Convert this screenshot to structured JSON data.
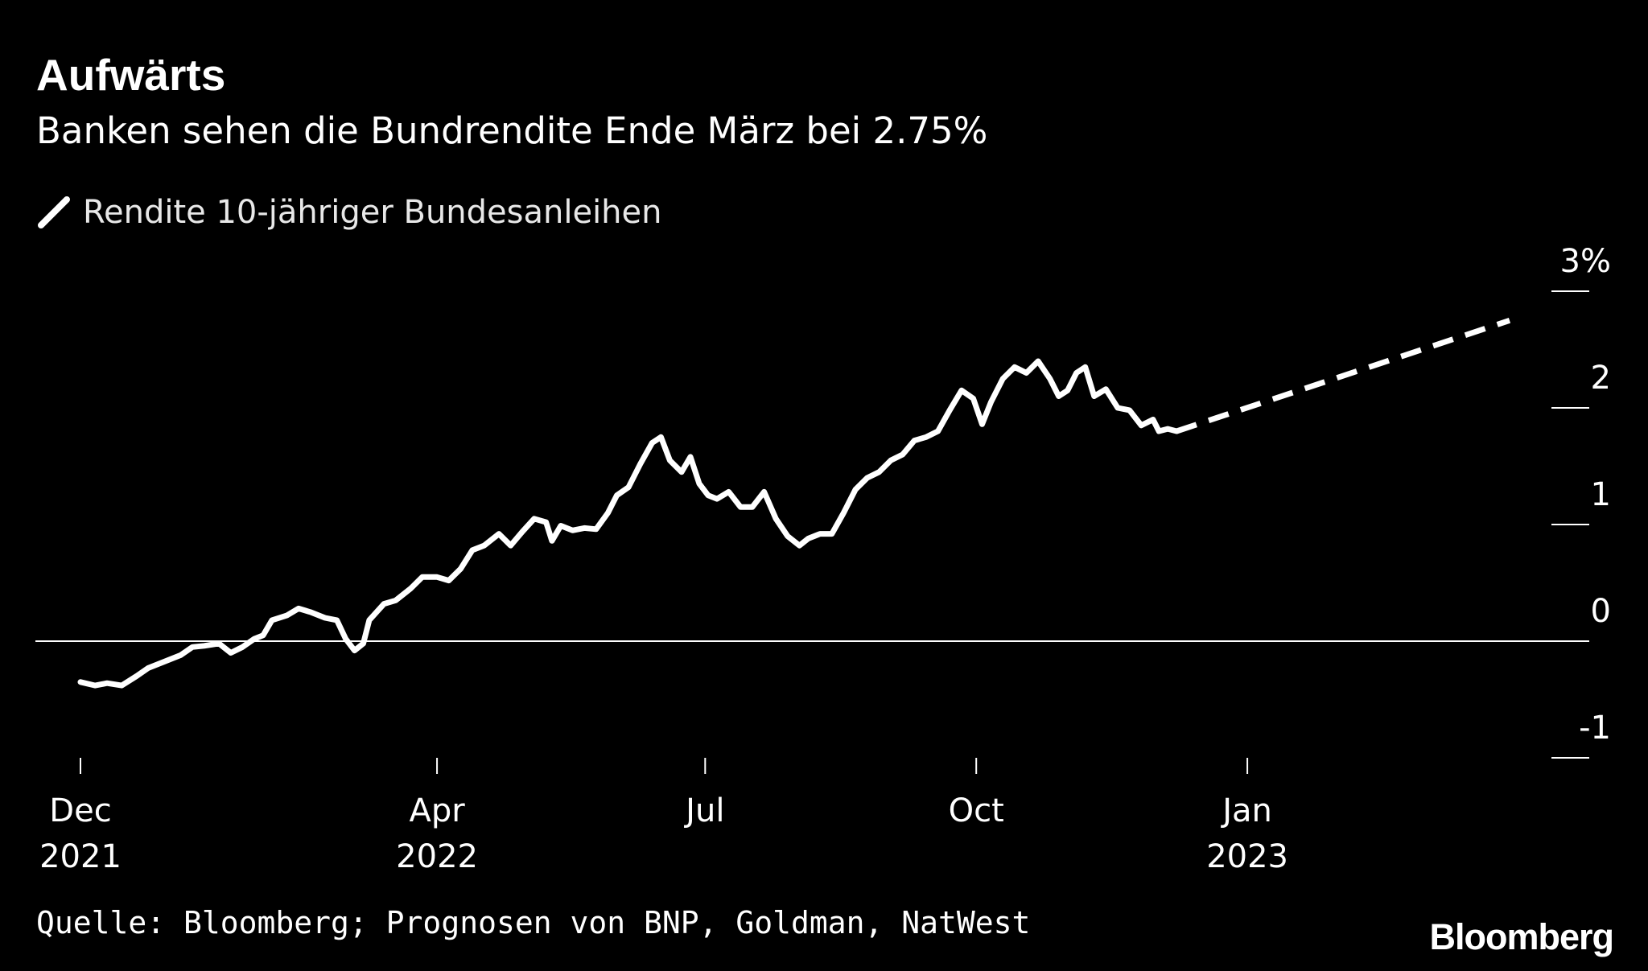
{
  "chart_data": {
    "type": "line",
    "title": "Aufwärts",
    "subtitle": "Banken sehen die Bundrendite Ende März bei 2.75%",
    "source": "Quelle: Bloomberg; Prognosen von BNP, Goldman, NatWest",
    "brand": "Bloomberg",
    "legend": {
      "position": "top-left",
      "label": "Rendite 10-jähriger Bundesanleihen"
    },
    "grid": false,
    "xlim": [
      "2021-12-01",
      "2023-03-31"
    ],
    "ylim": [
      -1,
      3
    ],
    "y_ticks": [
      {
        "value": 3,
        "label": "3%"
      },
      {
        "value": 2,
        "label": "2"
      },
      {
        "value": 1,
        "label": "1"
      },
      {
        "value": 0,
        "label": "0"
      },
      {
        "value": -1,
        "label": "-1"
      }
    ],
    "x_ticks": [
      {
        "date": "2021-12-01",
        "month": "Dec",
        "year": "2021"
      },
      {
        "date": "2022-04-01",
        "month": "Apr",
        "year": "2022"
      },
      {
        "date": "2022-07-01",
        "month": "Jul",
        "year": ""
      },
      {
        "date": "2022-10-01",
        "month": "Oct",
        "year": ""
      },
      {
        "date": "2023-01-01",
        "month": "Jan",
        "year": "2023"
      }
    ],
    "series": [
      {
        "name": "Rendite 10-jähriger Bundesanleihen",
        "style": "solid",
        "color": "#ffffff",
        "points": [
          [
            "2021-12-01",
            -0.35
          ],
          [
            "2021-12-06",
            -0.38
          ],
          [
            "2021-12-10",
            -0.36
          ],
          [
            "2021-12-15",
            -0.38
          ],
          [
            "2021-12-20",
            -0.3
          ],
          [
            "2021-12-24",
            -0.23
          ],
          [
            "2021-12-29",
            -0.18
          ],
          [
            "2022-01-04",
            -0.12
          ],
          [
            "2022-01-08",
            -0.05
          ],
          [
            "2022-01-12",
            -0.04
          ],
          [
            "2022-01-17",
            -0.02
          ],
          [
            "2022-01-21",
            -0.1
          ],
          [
            "2022-01-25",
            -0.05
          ],
          [
            "2022-01-29",
            0.02
          ],
          [
            "2022-02-01",
            0.05
          ],
          [
            "2022-02-04",
            0.18
          ],
          [
            "2022-02-09",
            0.22
          ],
          [
            "2022-02-13",
            0.28
          ],
          [
            "2022-02-17",
            0.25
          ],
          [
            "2022-02-22",
            0.2
          ],
          [
            "2022-02-26",
            0.18
          ],
          [
            "2022-03-01",
            0.02
          ],
          [
            "2022-03-04",
            -0.08
          ],
          [
            "2022-03-07",
            -0.02
          ],
          [
            "2022-03-09",
            0.18
          ],
          [
            "2022-03-14",
            0.32
          ],
          [
            "2022-03-18",
            0.35
          ],
          [
            "2022-03-23",
            0.45
          ],
          [
            "2022-03-27",
            0.55
          ],
          [
            "2022-04-01",
            0.55
          ],
          [
            "2022-04-05",
            0.52
          ],
          [
            "2022-04-09",
            0.62
          ],
          [
            "2022-04-13",
            0.78
          ],
          [
            "2022-04-17",
            0.82
          ],
          [
            "2022-04-22",
            0.92
          ],
          [
            "2022-04-26",
            0.82
          ],
          [
            "2022-04-30",
            0.94
          ],
          [
            "2022-05-04",
            1.05
          ],
          [
            "2022-05-08",
            1.02
          ],
          [
            "2022-05-10",
            0.86
          ],
          [
            "2022-05-13",
            0.99
          ],
          [
            "2022-05-17",
            0.95
          ],
          [
            "2022-05-21",
            0.97
          ],
          [
            "2022-05-25",
            0.96
          ],
          [
            "2022-05-29",
            1.1
          ],
          [
            "2022-06-01",
            1.25
          ],
          [
            "2022-06-05",
            1.32
          ],
          [
            "2022-06-09",
            1.52
          ],
          [
            "2022-06-13",
            1.7
          ],
          [
            "2022-06-16",
            1.75
          ],
          [
            "2022-06-19",
            1.55
          ],
          [
            "2022-06-23",
            1.45
          ],
          [
            "2022-06-26",
            1.58
          ],
          [
            "2022-06-29",
            1.35
          ],
          [
            "2022-07-02",
            1.25
          ],
          [
            "2022-07-05",
            1.22
          ],
          [
            "2022-07-09",
            1.28
          ],
          [
            "2022-07-13",
            1.15
          ],
          [
            "2022-07-17",
            1.15
          ],
          [
            "2022-07-21",
            1.28
          ],
          [
            "2022-07-25",
            1.05
          ],
          [
            "2022-07-29",
            0.9
          ],
          [
            "2022-08-02",
            0.82
          ],
          [
            "2022-08-05",
            0.88
          ],
          [
            "2022-08-09",
            0.92
          ],
          [
            "2022-08-13",
            0.92
          ],
          [
            "2022-08-17",
            1.1
          ],
          [
            "2022-08-21",
            1.3
          ],
          [
            "2022-08-25",
            1.4
          ],
          [
            "2022-08-29",
            1.45
          ],
          [
            "2022-09-02",
            1.55
          ],
          [
            "2022-09-06",
            1.6
          ],
          [
            "2022-09-10",
            1.72
          ],
          [
            "2022-09-14",
            1.75
          ],
          [
            "2022-09-18",
            1.8
          ],
          [
            "2022-09-22",
            1.98
          ],
          [
            "2022-09-26",
            2.15
          ],
          [
            "2022-09-30",
            2.08
          ],
          [
            "2022-10-03",
            1.86
          ],
          [
            "2022-10-06",
            2.05
          ],
          [
            "2022-10-10",
            2.25
          ],
          [
            "2022-10-14",
            2.35
          ],
          [
            "2022-10-18",
            2.3
          ],
          [
            "2022-10-22",
            2.4
          ],
          [
            "2022-10-26",
            2.25
          ],
          [
            "2022-10-29",
            2.1
          ],
          [
            "2022-11-01",
            2.15
          ],
          [
            "2022-11-04",
            2.3
          ],
          [
            "2022-11-07",
            2.35
          ],
          [
            "2022-11-10",
            2.1
          ],
          [
            "2022-11-14",
            2.16
          ],
          [
            "2022-11-18",
            2.0
          ],
          [
            "2022-11-22",
            1.98
          ],
          [
            "2022-11-26",
            1.85
          ],
          [
            "2022-11-30",
            1.9
          ],
          [
            "2022-12-02",
            1.8
          ],
          [
            "2022-12-05",
            1.82
          ],
          [
            "2022-12-08",
            1.8
          ]
        ]
      },
      {
        "name": "Prognose",
        "style": "dashed",
        "color": "#ffffff",
        "points": [
          [
            "2022-12-08",
            1.8
          ],
          [
            "2023-03-31",
            2.75
          ]
        ]
      }
    ]
  }
}
